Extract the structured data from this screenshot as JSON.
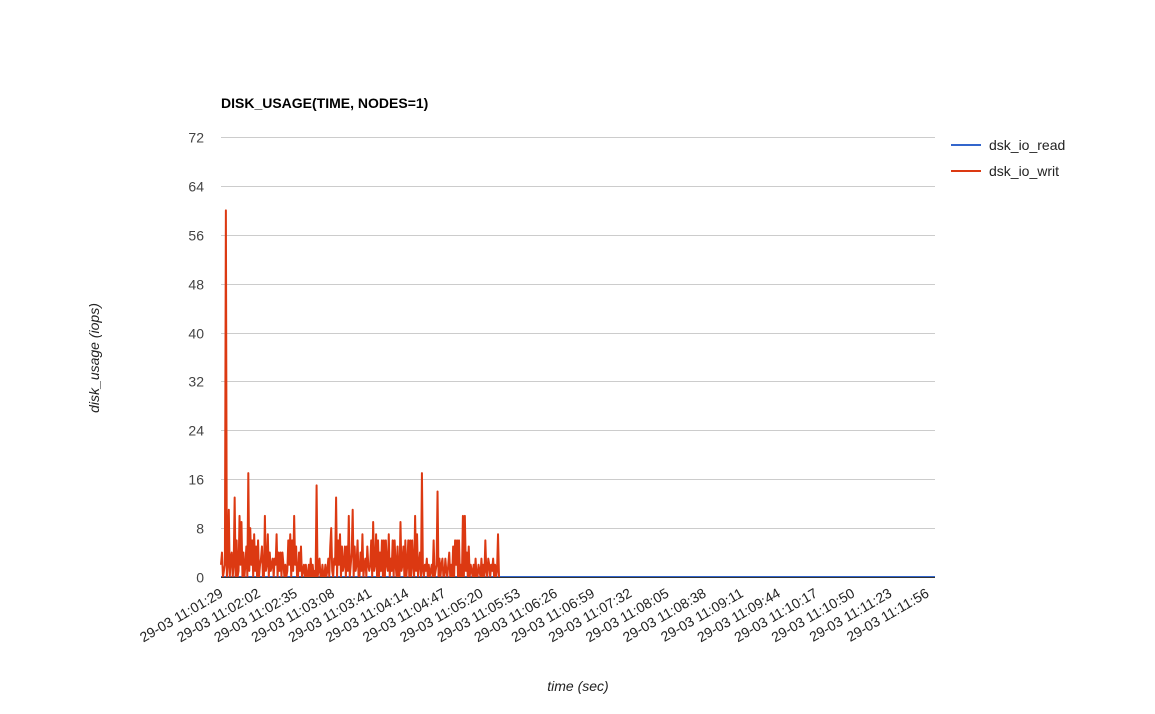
{
  "chart_data": {
    "type": "line",
    "title": "DISK_USAGE(TIME, NODES=1)",
    "xlabel": "time (sec)",
    "ylabel": "disk_usage (iops)",
    "ylim": [
      0,
      72
    ],
    "yticks": [
      0,
      8,
      16,
      24,
      32,
      40,
      48,
      56,
      64,
      72
    ],
    "grid": true,
    "legend_position": "right",
    "x_tick_labels": [
      "29-03 11:01:29",
      "29-03 11:02:02",
      "29-03 11:02:35",
      "29-03 11:03:08",
      "29-03 11:03:41",
      "29-03 11:04:14",
      "29-03 11:04:47",
      "29-03 11:05:20",
      "29-03 11:05:53",
      "29-03 11:06:26",
      "29-03 11:06:59",
      "29-03 11:07:32",
      "29-03 11:08:05",
      "29-03 11:08:38",
      "29-03 11:09:11",
      "29-03 11:09:44",
      "29-03 11:10:17",
      "29-03 11:10:50",
      "29-03 11:11:23",
      "29-03 11:11:56"
    ],
    "series": [
      {
        "name": "dsk_io_read",
        "color": "#3366cc",
        "values": [
          0,
          0,
          0,
          0,
          0,
          0,
          0,
          0,
          0,
          0,
          0,
          0,
          0,
          0,
          0,
          0,
          0,
          0,
          0,
          0,
          0,
          0,
          0,
          0,
          0,
          0,
          0,
          0,
          0,
          0,
          0,
          0,
          0,
          0,
          0,
          0,
          0,
          0,
          0,
          0,
          0,
          0,
          0,
          0,
          0,
          0,
          0,
          0,
          0,
          0,
          0,
          0,
          0,
          0,
          0,
          0,
          0,
          0,
          0,
          0,
          0,
          0,
          0,
          0,
          0,
          0,
          0,
          0,
          0,
          0,
          0,
          0,
          0,
          0,
          0,
          0,
          0,
          0,
          0,
          0,
          0,
          0,
          0,
          0,
          0,
          0,
          0,
          0,
          0,
          0,
          0,
          0,
          0,
          0,
          0,
          0,
          0,
          0,
          0,
          0,
          0,
          0,
          0,
          0,
          0,
          0,
          0,
          0,
          0,
          0,
          0,
          0,
          0,
          0,
          0,
          0,
          0,
          0,
          0,
          0,
          0,
          0,
          0,
          0,
          0,
          0,
          0,
          0,
          0,
          0,
          0,
          0,
          0,
          0,
          0,
          0,
          0,
          0,
          0,
          0,
          0,
          0,
          0,
          0,
          0,
          0,
          0,
          0,
          0,
          0,
          0,
          0,
          0,
          0,
          0,
          0,
          0,
          0,
          0,
          0,
          0,
          0,
          0,
          0,
          0,
          0,
          0,
          0,
          0,
          0,
          0,
          0,
          0,
          0,
          0,
          0,
          0,
          0,
          0,
          0,
          0,
          0,
          0,
          0,
          0,
          0,
          0,
          0,
          0,
          0,
          0,
          0,
          0,
          0,
          0,
          0,
          0,
          0,
          0,
          0,
          0,
          0,
          0,
          0,
          0,
          0,
          0,
          0,
          0,
          0,
          0,
          0,
          0,
          0,
          0,
          0,
          0,
          0,
          0,
          0,
          0,
          0,
          0,
          0,
          0,
          0,
          0,
          0,
          0,
          0,
          0,
          0,
          0,
          0,
          0,
          0,
          0,
          0,
          0,
          0,
          0,
          0,
          0,
          0,
          0,
          0,
          0,
          0,
          0,
          0,
          0,
          0,
          0,
          0,
          0,
          0,
          0,
          0,
          0,
          0,
          0,
          0,
          0,
          0,
          0,
          0,
          0,
          0,
          0,
          0,
          0,
          0,
          0,
          0,
          0,
          0,
          0,
          0,
          0,
          0,
          0,
          0,
          0,
          0,
          0,
          0,
          0,
          0,
          0,
          0,
          0,
          0,
          0,
          0,
          0,
          0,
          0,
          0,
          0,
          0,
          0,
          0,
          0,
          0,
          0,
          0,
          0,
          0,
          0,
          0,
          0,
          0,
          0,
          0,
          0,
          0,
          0,
          0,
          0,
          0,
          0,
          0,
          0,
          0,
          0,
          0,
          0,
          0,
          0,
          0,
          0,
          0,
          0,
          0,
          0,
          0,
          0,
          0,
          0,
          0,
          0,
          0,
          0,
          0,
          0,
          0,
          0,
          0,
          0,
          0,
          0,
          0,
          0,
          0,
          0,
          0,
          0,
          0,
          0,
          0,
          0,
          0,
          0,
          0,
          0,
          0,
          0,
          0,
          0,
          0,
          0,
          0,
          0,
          0,
          0,
          0,
          0,
          0,
          0,
          0,
          0,
          0,
          0,
          0,
          0,
          0,
          0,
          0,
          0,
          0,
          0,
          0,
          0,
          0,
          0,
          0,
          0,
          0,
          0,
          0,
          0,
          0,
          0,
          0,
          0,
          0,
          0,
          0,
          0,
          0,
          0,
          0,
          0,
          0,
          0,
          0,
          0,
          0,
          0,
          0,
          0,
          0,
          0,
          0,
          0,
          0,
          0,
          0,
          0,
          0,
          0,
          0,
          0,
          0,
          0,
          0,
          0,
          0,
          0,
          0,
          0,
          0,
          0,
          0,
          0,
          0,
          0,
          0,
          0,
          0,
          0,
          0,
          0,
          0,
          0,
          0,
          0,
          0,
          0,
          0,
          0,
          0,
          0,
          0,
          0,
          0,
          0,
          0,
          0,
          0,
          0,
          0,
          0,
          0,
          0,
          0,
          0,
          0,
          0,
          0,
          0,
          0,
          0,
          0,
          0,
          0,
          0,
          0,
          0,
          0,
          0,
          0,
          0,
          0,
          0,
          0,
          0,
          0,
          0,
          0,
          0,
          0,
          0,
          0,
          0,
          0,
          0,
          0,
          0,
          0,
          0,
          0,
          0,
          0,
          0,
          0,
          0,
          0,
          0,
          0,
          0,
          0,
          0,
          0,
          0,
          0,
          0,
          0,
          0,
          0,
          0,
          0,
          0,
          0,
          0,
          0,
          0,
          0,
          0,
          0,
          0,
          0,
          0,
          0,
          0,
          0,
          0,
          0,
          0,
          0,
          0,
          0,
          0,
          0,
          0,
          0,
          0,
          0,
          0,
          0,
          0,
          0,
          0,
          0,
          0,
          0,
          0,
          0,
          0,
          0,
          0,
          0,
          0,
          0,
          0,
          0,
          0,
          0,
          0,
          0,
          0,
          0,
          0,
          0,
          0,
          0,
          0,
          0,
          0,
          0,
          0,
          0,
          0,
          0,
          0,
          0,
          0,
          0,
          0,
          0,
          0,
          0,
          0,
          0,
          0,
          0,
          0,
          0,
          0,
          0,
          0,
          0,
          0,
          0,
          0,
          0,
          0,
          0,
          0,
          0,
          0,
          0,
          0,
          0,
          0,
          0,
          0,
          0,
          0,
          0,
          0,
          0,
          0,
          0,
          0,
          0,
          0,
          0,
          0,
          0,
          0,
          0,
          0,
          0,
          0,
          0,
          0,
          0,
          0,
          0,
          0,
          0,
          0,
          0,
          0,
          0,
          0,
          0,
          0,
          0,
          0,
          0,
          0,
          0,
          0,
          0,
          0,
          0,
          0,
          0,
          0,
          0,
          0,
          0,
          0,
          0,
          0,
          0,
          0,
          0,
          0,
          0,
          0,
          0,
          0,
          0,
          0,
          0,
          0,
          0,
          0,
          0,
          0,
          0,
          0,
          0,
          0,
          0,
          0,
          0,
          0,
          0,
          0,
          0,
          0,
          0,
          0,
          0,
          0,
          0,
          0,
          0,
          0,
          0,
          0,
          0,
          0,
          0,
          0,
          0,
          0,
          0,
          0,
          0,
          0,
          0,
          0,
          0,
          0,
          0,
          0,
          0,
          0
        ]
      },
      {
        "name": "dsk_io_writ",
        "color": "#dc3912",
        "values": [
          2,
          4,
          0,
          1,
          2,
          60,
          0,
          2,
          11,
          0,
          3,
          4,
          0,
          2,
          13,
          0,
          6,
          0,
          1,
          10,
          2,
          9,
          0,
          4,
          0,
          2,
          5,
          0,
          17,
          1,
          8,
          2,
          6,
          0,
          7,
          1,
          5,
          0,
          6,
          0,
          2,
          3,
          5,
          0,
          0,
          10,
          1,
          2,
          7,
          0,
          4,
          1,
          2,
          3,
          0,
          3,
          2,
          7,
          0,
          4,
          1,
          4,
          0,
          4,
          2,
          0,
          2,
          0,
          1,
          6,
          2,
          7,
          0,
          6,
          1,
          10,
          2,
          5,
          0,
          0,
          4,
          1,
          5,
          0,
          1,
          2,
          0,
          2,
          0,
          0,
          2,
          0,
          3,
          0,
          2,
          0,
          1,
          0,
          15,
          0,
          1,
          3,
          0,
          0,
          2,
          0,
          0,
          2,
          0,
          1,
          3,
          0,
          5,
          8,
          1,
          0,
          3,
          2,
          13,
          0,
          6,
          2,
          7,
          0,
          5,
          1,
          2,
          5,
          0,
          5,
          1,
          10,
          0,
          2,
          4,
          11,
          0,
          5,
          1,
          2,
          6,
          0,
          0,
          4,
          1,
          7,
          0,
          2,
          3,
          0,
          5,
          2,
          1,
          2,
          6,
          0,
          9,
          1,
          2,
          7,
          0,
          6,
          0,
          4,
          1,
          6,
          0,
          6,
          0,
          6,
          2,
          1,
          7,
          0,
          3,
          1,
          6,
          0,
          6,
          2,
          0,
          5,
          0,
          0,
          9,
          1,
          2,
          5,
          0,
          6,
          0,
          2,
          6,
          0,
          6,
          0,
          6,
          2,
          0,
          10,
          1,
          7,
          0,
          2,
          4,
          0,
          17,
          1,
          0,
          2,
          1,
          3,
          0,
          2,
          0,
          1,
          2,
          0,
          6,
          0,
          1,
          2,
          14,
          0,
          3,
          0,
          2,
          3,
          0,
          0,
          3,
          1,
          0,
          2,
          4,
          0,
          2,
          0,
          5,
          0,
          6,
          2,
          6,
          0,
          6,
          0,
          2,
          0,
          10,
          0,
          10,
          1,
          4,
          0,
          5,
          0,
          2,
          1,
          0,
          2,
          0,
          3,
          0,
          0,
          2,
          1,
          0,
          3,
          0,
          2,
          0,
          6,
          1,
          0,
          3,
          2,
          0,
          2,
          1,
          3,
          0,
          2,
          0,
          1,
          7,
          0
        ]
      }
    ]
  }
}
